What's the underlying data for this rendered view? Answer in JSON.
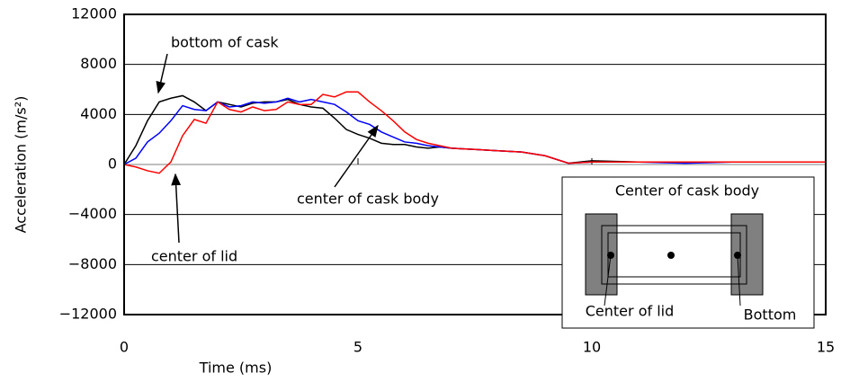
{
  "chart_data": {
    "type": "line",
    "xlabel": "Time (ms)",
    "ylabel": "Acceleration (m/s²)",
    "x": [
      0,
      0.25,
      0.5,
      0.75,
      1,
      1.25,
      1.5,
      1.75,
      2,
      2.25,
      2.5,
      2.75,
      3,
      3.25,
      3.5,
      3.75,
      4,
      4.25,
      4.5,
      4.75,
      5,
      5.25,
      5.5,
      5.75,
      6,
      6.25,
      6.5,
      6.75,
      7,
      7.5,
      8,
      8.5,
      9,
      9.5,
      10,
      11,
      12,
      13,
      14,
      15
    ],
    "series": [
      {
        "name": "bottom of cask",
        "color": "#000000",
        "values": [
          0,
          1500,
          3500,
          5000,
          5300,
          5500,
          5000,
          4300,
          5000,
          4800,
          4600,
          4900,
          5000,
          5000,
          5200,
          4800,
          4600,
          4500,
          3700,
          2800,
          2400,
          2100,
          1700,
          1600,
          1600,
          1400,
          1300,
          1400,
          1300,
          1200,
          1100,
          1000,
          700,
          100,
          300,
          200,
          200,
          200,
          200,
          200
        ]
      },
      {
        "name": "center of cask body",
        "color": "#0000ff",
        "values": [
          0,
          500,
          1800,
          2500,
          3500,
          4700,
          4400,
          4300,
          5000,
          4600,
          4700,
          5000,
          4900,
          5000,
          5300,
          5000,
          5200,
          5000,
          4800,
          4200,
          3500,
          3200,
          2600,
          2200,
          1800,
          1700,
          1500,
          1400,
          1300,
          1200,
          1100,
          1000,
          700,
          100,
          200,
          200,
          100,
          200,
          200,
          200
        ]
      },
      {
        "name": "center of lid",
        "color": "#ff0000",
        "values": [
          0,
          -200,
          -500,
          -700,
          200,
          2300,
          3600,
          3300,
          5000,
          4400,
          4200,
          4600,
          4300,
          4400,
          5000,
          4800,
          4800,
          5600,
          5400,
          5800,
          5800,
          5000,
          4300,
          3500,
          2600,
          2000,
          1700,
          1500,
          1300,
          1200,
          1100,
          1000,
          700,
          100,
          200,
          200,
          200,
          200,
          200,
          200
        ]
      }
    ],
    "xlim": [
      0,
      15
    ],
    "xticks": [
      0,
      5,
      10,
      15
    ],
    "ylim": [
      -12000,
      12000
    ],
    "yticks": [
      {
        "value": -12000,
        "label": "−12000"
      },
      {
        "value": -8000,
        "label": "−8000"
      },
      {
        "value": -4000,
        "label": "−4000"
      },
      0,
      4000,
      8000,
      12000
    ],
    "grid": true,
    "inset_labels": [
      "Center of cask body",
      "Center of lid",
      "Bottom"
    ]
  }
}
